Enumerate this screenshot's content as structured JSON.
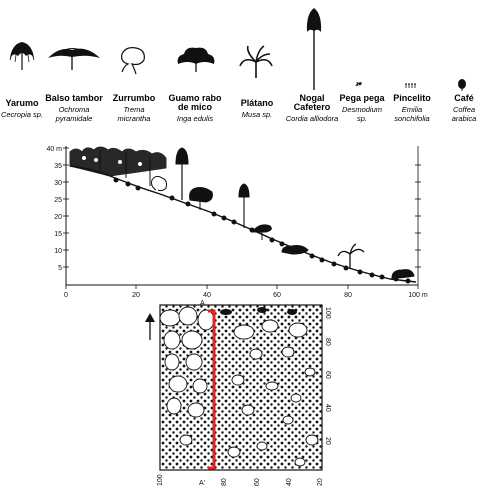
{
  "legend": [
    {
      "common": "Yarumo",
      "sci": [
        "Cecropia sp."
      ],
      "icon": "yarumo-tree-icon"
    },
    {
      "common": "Balso tambor",
      "sci": [
        "Ochroma",
        "pyramidale"
      ],
      "icon": "balso-tree-icon"
    },
    {
      "common": "Zurrumbo",
      "sci": [
        "Trema",
        "micrantha"
      ],
      "icon": "zurrumbo-tree-icon"
    },
    {
      "common": "Guamo rabo de mico",
      "common_lines": [
        "Guamo rabo",
        "de mico"
      ],
      "sci": [
        "Inga edulis"
      ],
      "icon": "guamo-tree-icon"
    },
    {
      "common": "Plátano",
      "sci": [
        "Musa sp."
      ],
      "icon": "platano-plant-icon"
    },
    {
      "common": "Nogal Cafetero",
      "common_lines": [
        "Nogal",
        "Cafetero"
      ],
      "sci": [
        "Cordia alliodora"
      ],
      "icon": "nogal-tree-icon"
    },
    {
      "common": "Pega pega",
      "sci": [
        "Desmodium",
        "sp."
      ],
      "icon": "pega-pega-herb-icon"
    },
    {
      "common": "Pincelito",
      "sci": [
        "Emilia",
        "sonchifolia"
      ],
      "icon": "pincelito-herb-icon"
    },
    {
      "common": "Café",
      "sci": [
        "Coffea",
        "arabica"
      ],
      "icon": "cafe-shrub-icon"
    }
  ],
  "profile": {
    "y_unit_label": "40 m",
    "y_ticks": [
      "35",
      "30",
      "25",
      "20",
      "15",
      "10",
      "5"
    ],
    "x_ticks": [
      "0",
      "20",
      "40",
      "60",
      "80",
      "100 m"
    ]
  },
  "plan": {
    "top_marker": "A",
    "bottom_marker": "A'",
    "right_ticks": [
      "100",
      "80",
      "60",
      "40",
      "20"
    ],
    "bottom_ticks": [
      "100",
      "80",
      "60",
      "40",
      "20"
    ],
    "north_arrow": "north-arrow-icon"
  },
  "colors": {
    "ink": "#111111",
    "transect": "#e0251b"
  }
}
